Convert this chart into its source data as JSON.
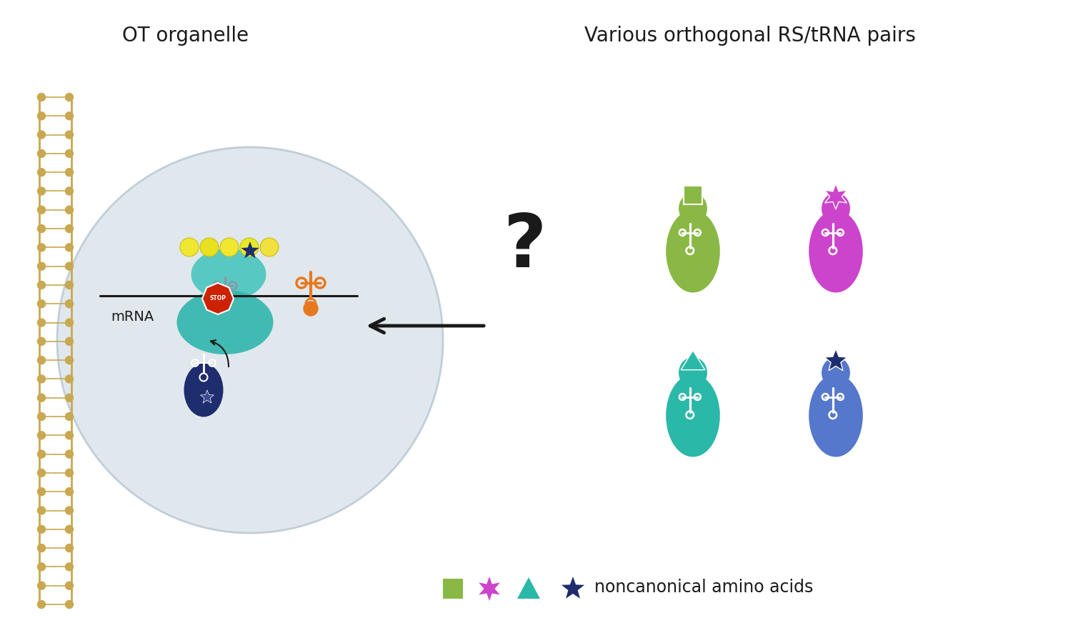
{
  "title_left": "OT organelle",
  "title_right": "Various orthogonal RS/tRNA pairs",
  "legend_text": "noncanonical amino acids",
  "bg_color": "#ffffff",
  "organelle_bg": "#dde8ee",
  "ribosome_top_color": "#4ecdc4",
  "ribosome_bottom_color": "#5bc8c0",
  "mrna_color": "#1a1a1a",
  "stop_color": "#cc2200",
  "peptide_color": "#f0e040",
  "trna_orange_color": "#e87820",
  "trna_dark_color": "#1e2d6e",
  "ncaa_green": "#8ab844",
  "ncaa_purple": "#cc44cc",
  "ncaa_teal": "#2ab8a8",
  "ncaa_blue": "#5577cc",
  "ncaa_star_color": "#1e2d6e",
  "membrane_color": "#c8a850"
}
